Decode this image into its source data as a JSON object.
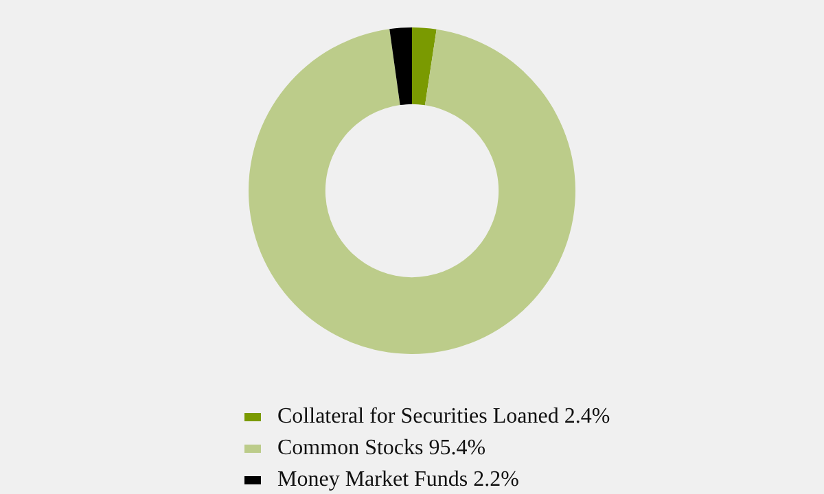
{
  "chart_data": {
    "type": "donut",
    "categories": [
      "Collateral for Securities Loaned 2.4%",
      "Common Stocks 95.4%",
      "Money Market Funds 2.2%"
    ],
    "values": [
      2.4,
      95.4,
      2.2
    ],
    "colors": [
      "#7a9a01",
      "#bccc8a",
      "#000000"
    ],
    "legend": "bottom"
  }
}
